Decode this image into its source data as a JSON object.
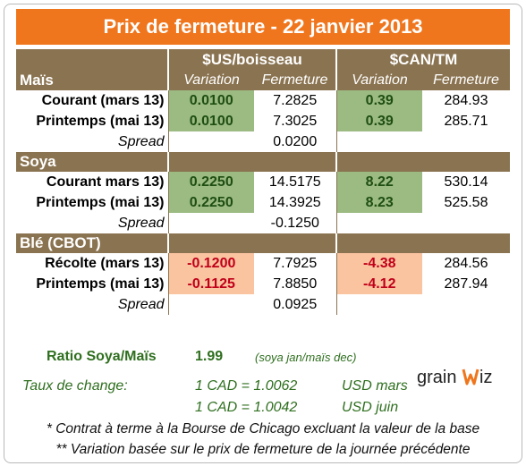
{
  "title": "Prix de fermeture - 22 janvier 2013",
  "headers": {
    "usd_group": "$US/boisseau",
    "cad_group": "$CAN/TM",
    "variation": "Variation",
    "fermeture": "Fermeture"
  },
  "sections": [
    {
      "name": "Maïs",
      "rows": [
        {
          "label": "Courant (mars 13)",
          "usd_var": "0.0100",
          "usd_close": "7.2825",
          "cad_var": "0.39",
          "cad_close": "284.93"
        },
        {
          "label": "Printemps (mai 13)",
          "usd_var": "0.0100",
          "usd_close": "7.3025",
          "cad_var": "0.39",
          "cad_close": "285.71"
        }
      ],
      "spread_label": "Spread",
      "spread_value": "0.0200"
    },
    {
      "name": "Soya",
      "rows": [
        {
          "label": "Courant mars 13)",
          "usd_var": "0.2250",
          "usd_close": "14.5175",
          "cad_var": "8.22",
          "cad_close": "530.14"
        },
        {
          "label": "Printemps (mai 13)",
          "usd_var": "0.2250",
          "usd_close": "14.3925",
          "cad_var": "8.23",
          "cad_close": "525.58"
        }
      ],
      "spread_label": "Spread",
      "spread_value": "-0.1250"
    },
    {
      "name": "Blé (CBOT)",
      "rows": [
        {
          "label": "Récolte (mars 13)",
          "usd_var": "-0.1200",
          "usd_close": "7.7925",
          "cad_var": "-4.38",
          "cad_close": "284.56"
        },
        {
          "label": "Printemps (mai 13)",
          "usd_var": "-0.1125",
          "usd_close": "7.8850",
          "cad_var": "-4.12",
          "cad_close": "287.94"
        }
      ],
      "spread_label": "Spread",
      "spread_value": "0.0925"
    }
  ],
  "ratio": {
    "label": "Ratio Soya/Maïs",
    "value": "1.99",
    "note": "(soya jan/maïs dec)"
  },
  "exchange": {
    "label": "Taux de change:",
    "line1_rate": "1 CAD =  1.0062",
    "line1_unit": "USD mars",
    "line2_rate": "1 CAD =  1.0042",
    "line2_unit": "USD juin"
  },
  "footnotes": [
    "* Contrat à terme à la Bourse de Chicago excluant la valeur de la base",
    "** Variation basée sur le prix de fermeture de la journée précédente"
  ],
  "logo": {
    "text_left": "grain",
    "text_right": "iz"
  },
  "colors": {
    "orange": "#f0761d",
    "brown": "#8a7350",
    "green_fill": "#9bbb83",
    "peach_fill": "#fbc4a0",
    "red_text": "#c0001a",
    "green_text": "#2f6f1f"
  }
}
